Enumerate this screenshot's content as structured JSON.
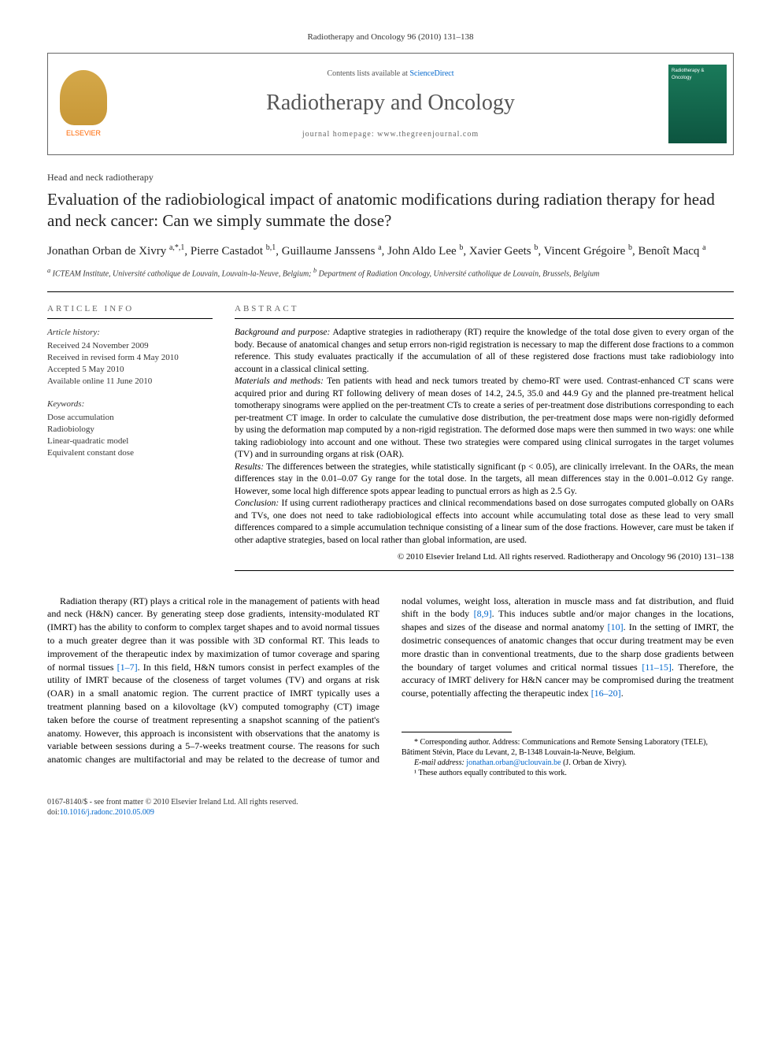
{
  "citation": "Radiotherapy and Oncology 96 (2010) 131–138",
  "banner": {
    "contents_prefix": "Contents lists available at ",
    "contents_link": "ScienceDirect",
    "journal_name": "Radiotherapy and Oncology",
    "homepage_prefix": "journal homepage: ",
    "homepage_url": "www.thegreenjournal.com",
    "publisher_logo": "ELSEVIER",
    "cover_label": "Radiotherapy & Oncology"
  },
  "section_label": "Head and neck radiotherapy",
  "title": "Evaluation of the radiobiological impact of anatomic modifications during radiation therapy for head and neck cancer: Can we simply summate the dose?",
  "authors_html": "Jonathan Orban de Xivry <sup>a,*,1</sup>, Pierre Castadot <sup>b,1</sup>, Guillaume Janssens <sup>a</sup>, John Aldo Lee <sup>b</sup>, Xavier Geets <sup>b</sup>, Vincent Grégoire <sup>b</sup>, Benoît Macq <sup>a</sup>",
  "affiliations": "<sup>a</sup> ICTEAM Institute, Université catholique de Louvain, Louvain-la-Neuve, Belgium; <sup>b</sup> Department of Radiation Oncology, Université catholique de Louvain, Brussels, Belgium",
  "article_info": {
    "heading": "ARTICLE INFO",
    "history_label": "Article history:",
    "history": [
      "Received 24 November 2009",
      "Received in revised form 4 May 2010",
      "Accepted 5 May 2010",
      "Available online 11 June 2010"
    ],
    "keywords_label": "Keywords:",
    "keywords": [
      "Dose accumulation",
      "Radiobiology",
      "Linear-quadratic model",
      "Equivalent constant dose"
    ]
  },
  "abstract": {
    "heading": "ABSTRACT",
    "segments": [
      {
        "label": "Background and purpose:",
        "text": " Adaptive strategies in radiotherapy (RT) require the knowledge of the total dose given to every organ of the body. Because of anatomical changes and setup errors non-rigid registration is necessary to map the different dose fractions to a common reference. This study evaluates practically if the accumulation of all of these registered dose fractions must take radiobiology into account in a classical clinical setting."
      },
      {
        "label": "Materials and methods:",
        "text": " Ten patients with head and neck tumors treated by chemo-RT were used. Contrast-enhanced CT scans were acquired prior and during RT following delivery of mean doses of 14.2, 24.5, 35.0 and 44.9 Gy and the planned pre-treatment helical tomotherapy sinograms were applied on the per-treatment CTs to create a series of per-treatment dose distributions corresponding to each per-treatment CT image. In order to calculate the cumulative dose distribution, the per-treatment dose maps were non-rigidly deformed by using the deformation map computed by a non-rigid registration. The deformed dose maps were then summed in two ways: one while taking radiobiology into account and one without. These two strategies were compared using clinical surrogates in the target volumes (TV) and in surrounding organs at risk (OAR)."
      },
      {
        "label": "Results:",
        "text": " The differences between the strategies, while statistically significant (p < 0.05), are clinically irrelevant. In the OARs, the mean differences stay in the 0.01–0.07 Gy range for the total dose. In the targets, all mean differences stay in the 0.001–0.012 Gy range. However, some local high difference spots appear leading to punctual errors as high as 2.5 Gy."
      },
      {
        "label": "Conclusion:",
        "text": " If using current radiotherapy practices and clinical recommendations based on dose surrogates computed globally on OARs and TVs, one does not need to take radiobiological effects into account while accumulating total dose as these lead to very small differences compared to a simple accumulation technique consisting of a linear sum of the dose fractions. However, care must be taken if other adaptive strategies, based on local rather than global information, are used."
      }
    ],
    "copyright": "© 2010 Elsevier Ireland Ltd. All rights reserved. Radiotherapy and Oncology 96 (2010) 131–138"
  },
  "body": {
    "para1": "Radiation therapy (RT) plays a critical role in the management of patients with head and neck (H&N) cancer. By generating steep dose gradients, intensity-modulated RT (IMRT) has the ability to conform to complex target shapes and to avoid normal tissues to a much greater degree than it was possible with 3D conformal RT. This leads to improvement of the therapeutic index by maximization of tumor coverage and sparing of normal tissues ",
    "ref1": "[1–7]",
    "para1b": ". In this field, H&N tumors consist in perfect examples of the utility of IMRT because of the closeness of target volumes (TV) and organs at risk (OAR) in a small anatomic region. The current practice of IMRT typically uses a treatment planning based on a kilovoltage",
    "para2a": "(kV) computed tomography (CT) image taken before the course of treatment representing a snapshot scanning of the patient's anatomy. However, this approach is inconsistent with observations that the anatomy is variable between sessions during a 5–7-weeks treatment course. The reasons for such anatomic changes are multifactorial and may be related to the decrease of tumor and nodal volumes, weight loss, alteration in muscle mass and fat distribution, and fluid shift in the body ",
    "ref2": "[8,9]",
    "para2b": ". This induces subtle and/or major changes in the locations, shapes and sizes of the disease and normal anatomy ",
    "ref3": "[10]",
    "para2c": ". In the setting of IMRT, the dosimetric consequences of anatomic changes that occur during treatment may be even more drastic than in conventional treatments, due to the sharp dose gradients between the boundary of target volumes and critical normal tissues ",
    "ref4": "[11–15]",
    "para2d": ". Therefore, the accuracy of IMRT delivery for H&N cancer may be compromised during the treatment course, potentially affecting the therapeutic index ",
    "ref5": "[16–20]",
    "para2e": "."
  },
  "footnotes": {
    "corr": "* Corresponding author. Address: Communications and Remote Sensing Laboratory (TELE), Bâtiment Stévin, Place du Levant, 2, B-1348 Louvain-la-Neuve, Belgium.",
    "email_label": "E-mail address:",
    "email": "jonathan.orban@uclouvain.be",
    "email_name": " (J. Orban de Xivry).",
    "contrib": "¹ These authors equally contributed to this work."
  },
  "bottom": {
    "issn": "0167-8140/$ - see front matter © 2010 Elsevier Ireland Ltd. All rights reserved.",
    "doi_label": "doi:",
    "doi": "10.1016/j.radonc.2010.05.009"
  },
  "colors": {
    "link": "#0066cc",
    "text": "#000000",
    "muted": "#666666",
    "logo_orange": "#ff6600",
    "cover_green": "#1a7a5a"
  }
}
